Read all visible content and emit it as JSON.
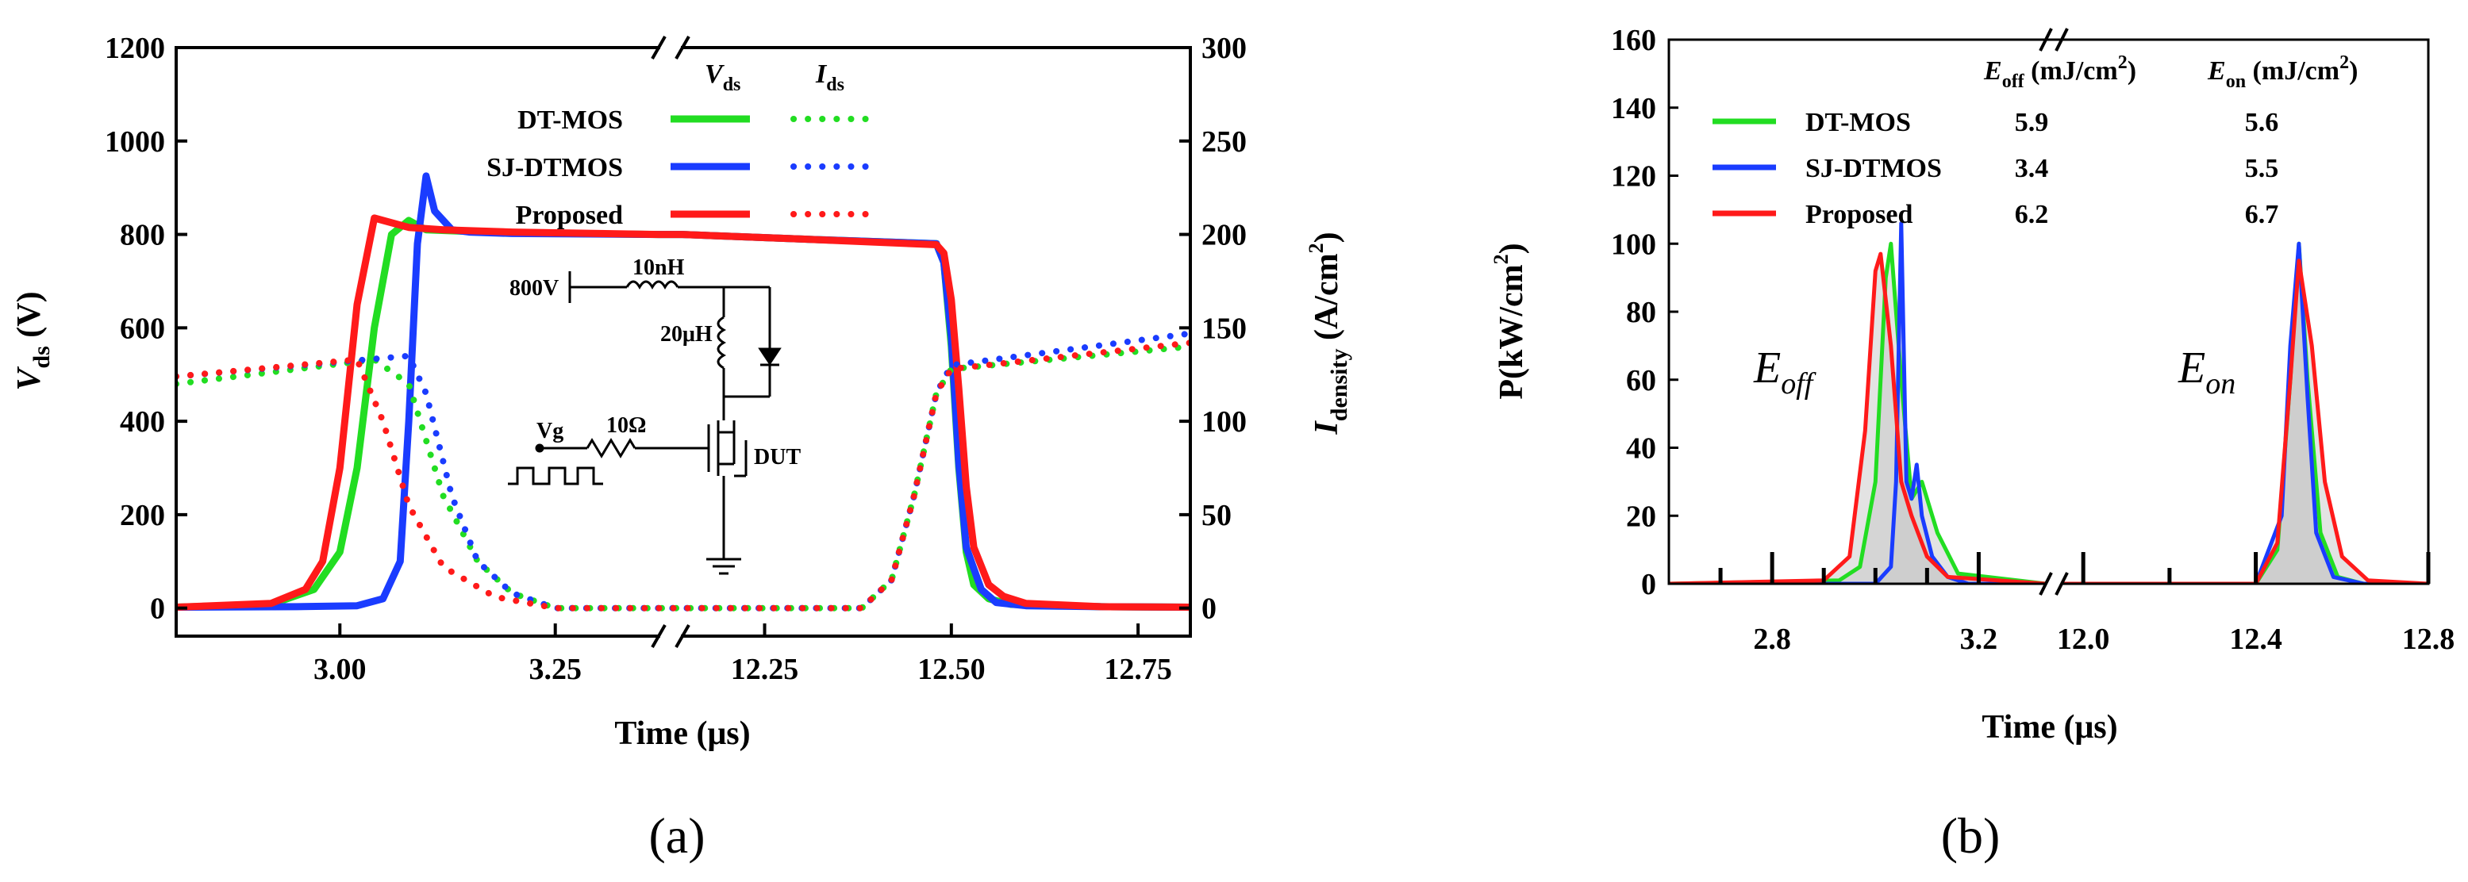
{
  "chart_data": [
    {
      "type": "line",
      "panel_label": "(a)",
      "xlabel": "Time (μs)",
      "x_ticks": [
        "3.00",
        "3.25",
        "12.25",
        "12.50",
        "12.75"
      ],
      "broken_x_axis": true,
      "x_segments": [
        [
          2.81,
          3.37
        ],
        [
          12.14,
          12.82
        ]
      ],
      "ylabel_left": {
        "main": "V",
        "sub": "ds",
        "tail": " (V)"
      },
      "ylabel_right": {
        "main": "I",
        "sub": "density",
        "tail": " (A/cm",
        "sup": "2",
        "end": ")"
      },
      "ylim_left": [
        -60,
        1200
      ],
      "ylim_right": [
        -15,
        300
      ],
      "yticks_left": [
        0,
        200,
        400,
        600,
        800,
        1000,
        1200
      ],
      "yticks_right": [
        0,
        50,
        100,
        150,
        200,
        250,
        300
      ],
      "legend_headers": [
        {
          "main": "V",
          "sub": "ds"
        },
        {
          "main": "I",
          "sub": "ds"
        }
      ],
      "series": [
        {
          "name": "DT-MOS",
          "color": "#22dd22",
          "quantity": "Vds",
          "x": [
            2.81,
            2.92,
            2.97,
            3.0,
            3.02,
            3.04,
            3.06,
            3.08,
            3.1,
            3.2,
            3.37,
            12.14,
            12.3,
            12.48,
            12.49,
            12.5,
            12.51,
            12.52,
            12.53,
            12.55,
            12.58,
            12.7,
            12.82
          ],
          "values": [
            2,
            8,
            40,
            120,
            300,
            600,
            800,
            830,
            810,
            803,
            800,
            800,
            790,
            780,
            740,
            560,
            300,
            120,
            50,
            20,
            8,
            3,
            2
          ]
        },
        {
          "name": "SJ-DTMOS",
          "color": "#1a3cff",
          "quantity": "Vds",
          "x": [
            2.81,
            2.95,
            3.02,
            3.05,
            3.07,
            3.08,
            3.09,
            3.1,
            3.11,
            3.13,
            3.15,
            3.2,
            3.37,
            12.14,
            12.3,
            12.48,
            12.49,
            12.5,
            12.51,
            12.52,
            12.54,
            12.56,
            12.6,
            12.7,
            12.82
          ],
          "values": [
            2,
            3,
            5,
            20,
            100,
            400,
            780,
            925,
            850,
            810,
            805,
            802,
            800,
            800,
            790,
            780,
            740,
            580,
            310,
            130,
            40,
            12,
            5,
            3,
            2
          ]
        },
        {
          "name": "Proposed",
          "color": "#ff1a1a",
          "quantity": "Vds",
          "x": [
            2.81,
            2.92,
            2.96,
            2.98,
            3.0,
            3.02,
            3.04,
            3.05,
            3.08,
            3.12,
            3.2,
            3.37,
            12.14,
            12.3,
            12.48,
            12.49,
            12.5,
            12.51,
            12.52,
            12.53,
            12.55,
            12.57,
            12.6,
            12.7,
            12.82
          ],
          "values": [
            2,
            10,
            40,
            100,
            300,
            650,
            835,
            830,
            815,
            810,
            805,
            800,
            800,
            790,
            778,
            760,
            660,
            470,
            260,
            130,
            50,
            25,
            10,
            3,
            2
          ]
        },
        {
          "name": "DT-MOS",
          "color": "#22dd22",
          "quantity": "Ids",
          "dotted": true,
          "x": [
            2.81,
            3.04,
            3.08,
            3.12,
            3.16,
            3.2,
            3.25,
            3.37,
            12.14,
            12.38,
            12.42,
            12.45,
            12.48,
            12.5,
            12.82
          ],
          "values": [
            120,
            133,
            120,
            60,
            25,
            8,
            0,
            0,
            0,
            0,
            15,
            60,
            115,
            128,
            140
          ]
        },
        {
          "name": "SJ-DTMOS",
          "color": "#1a3cff",
          "quantity": "Ids",
          "dotted": true,
          "x": [
            2.81,
            3.08,
            3.1,
            3.13,
            3.16,
            3.2,
            3.25,
            3.37,
            12.14,
            12.38,
            12.42,
            12.45,
            12.48,
            12.5,
            12.82
          ],
          "values": [
            124,
            135,
            115,
            60,
            25,
            8,
            0,
            0,
            0,
            0,
            15,
            60,
            115,
            130,
            147
          ]
        },
        {
          "name": "Proposed",
          "color": "#ff1a1a",
          "quantity": "Ids",
          "dotted": true,
          "x": [
            2.81,
            3.02,
            3.05,
            3.08,
            3.12,
            3.18,
            3.25,
            3.37,
            12.14,
            12.38,
            12.42,
            12.45,
            12.48,
            12.5,
            12.82
          ],
          "values": [
            124,
            133,
            100,
            55,
            22,
            6,
            0,
            0,
            0,
            0,
            15,
            60,
            115,
            128,
            142
          ]
        }
      ],
      "inset_circuit": {
        "labels": [
          "800V",
          "10nH",
          "20μH",
          "Vg",
          "10Ω",
          "DUT"
        ]
      }
    },
    {
      "type": "area",
      "panel_label": "(b)",
      "xlabel": "Time (μs)",
      "ylabel": {
        "main": "P(kW/cm",
        "sup": "2",
        "end": ")"
      },
      "x_ticks": [
        "2.8",
        "3.2",
        "12.0",
        "12.4",
        "12.8"
      ],
      "broken_x_axis": true,
      "x_segments": [
        [
          2.6,
          3.33
        ],
        [
          11.95,
          12.8
        ]
      ],
      "ylim": [
        0,
        160
      ],
      "yticks": [
        0,
        20,
        40,
        60,
        80,
        100,
        120,
        140,
        160
      ],
      "table_headers": [
        {
          "main": "E",
          "sub": "off",
          "tail": " (mJ/cm",
          "sup": "2",
          "end": ")"
        },
        {
          "main": "E",
          "sub": "on",
          "tail": " (mJ/cm",
          "sup": "2",
          "end": ")"
        }
      ],
      "table_rows": [
        {
          "name": "DT-MOS",
          "color": "#22dd22",
          "e_off": "5.9",
          "e_on": "5.6"
        },
        {
          "name": "SJ-DTMOS",
          "color": "#1a3cff",
          "e_off": "3.4",
          "e_on": "5.5"
        },
        {
          "name": "Proposed",
          "color": "#ff1a1a",
          "e_off": "6.2",
          "e_on": "6.7"
        }
      ],
      "annotations": [
        {
          "main": "E",
          "sub": "off"
        },
        {
          "main": "E",
          "sub": "on"
        }
      ],
      "series": [
        {
          "name": "DT-MOS",
          "color": "#22dd22",
          "x": [
            2.6,
            2.93,
            2.97,
            3.0,
            3.02,
            3.03,
            3.05,
            3.07,
            3.09,
            3.12,
            3.16,
            3.33,
            11.95,
            12.4,
            12.45,
            12.48,
            12.5,
            12.52,
            12.55,
            12.59,
            12.65,
            12.8
          ],
          "values": [
            0,
            1,
            5,
            30,
            90,
            100,
            60,
            25,
            30,
            15,
            3,
            0,
            0,
            0,
            10,
            60,
            100,
            60,
            15,
            2,
            0,
            0
          ]
        },
        {
          "name": "SJ-DTMOS",
          "color": "#1a3cff",
          "x": [
            2.6,
            3.0,
            3.03,
            3.04,
            3.05,
            3.06,
            3.07,
            3.08,
            3.09,
            3.11,
            3.14,
            3.18,
            3.33,
            11.95,
            12.4,
            12.46,
            12.48,
            12.5,
            12.52,
            12.54,
            12.58,
            12.65,
            12.8
          ],
          "values": [
            0,
            0,
            5,
            30,
            106,
            30,
            25,
            35,
            20,
            8,
            2,
            0,
            0,
            0,
            0,
            20,
            70,
            100,
            55,
            15,
            2,
            0,
            0
          ]
        },
        {
          "name": "Proposed",
          "color": "#ff1a1a",
          "x": [
            2.6,
            2.9,
            2.95,
            2.98,
            3.0,
            3.01,
            3.03,
            3.05,
            3.07,
            3.1,
            3.14,
            3.33,
            11.95,
            12.4,
            12.45,
            12.48,
            12.5,
            12.53,
            12.56,
            12.6,
            12.66,
            12.8
          ],
          "values": [
            0,
            1,
            8,
            45,
            92,
            97,
            70,
            30,
            20,
            8,
            2,
            0,
            0,
            0,
            12,
            60,
            95,
            70,
            30,
            8,
            1,
            0
          ]
        }
      ]
    }
  ]
}
